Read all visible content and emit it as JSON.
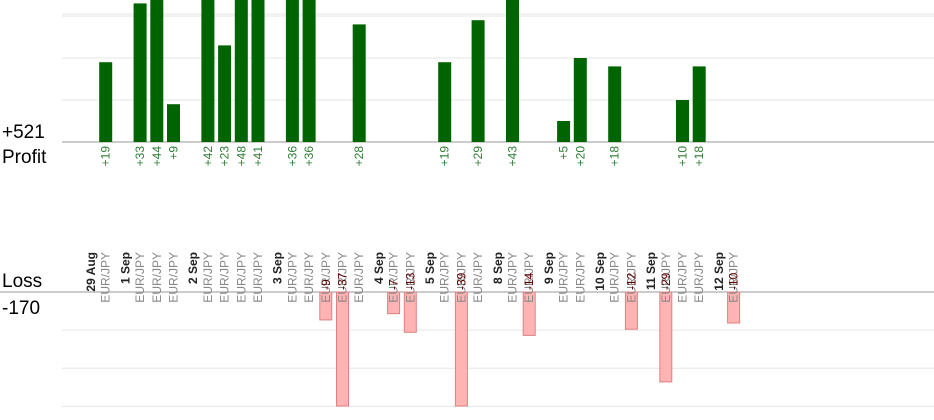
{
  "profit": {
    "total": "+521",
    "label": "Profit"
  },
  "loss": {
    "label": "Loss",
    "total": "-170"
  },
  "colors": {
    "profit_bar": "#006400",
    "profit_text": "#2e7d32",
    "loss_bar": "#ffb3b3",
    "loss_bar_border": "#e08080",
    "loss_text": "#5a0000",
    "pair_text": "#888888",
    "date_text": "#222222",
    "grid": "#e6e6e6",
    "axis": "#999999"
  },
  "chart_data": {
    "type": "bar",
    "pair": "EUR/JPY",
    "profit_axis": {
      "ylim": [
        0,
        34
      ],
      "grid_step": 10
    },
    "loss_axis": {
      "ylim": [
        -37,
        0
      ],
      "grid_step": 10
    },
    "days": [
      {
        "date": "29 Aug",
        "trades": [
          19
        ]
      },
      {
        "date": "1 Sep",
        "trades": [
          33,
          44,
          9
        ]
      },
      {
        "date": "2 Sep",
        "trades": [
          42,
          23,
          48,
          41
        ]
      },
      {
        "date": "3 Sep",
        "trades": [
          36,
          36,
          -9,
          -37,
          28
        ]
      },
      {
        "date": "4 Sep",
        "trades": [
          -7,
          -13
        ]
      },
      {
        "date": "5 Sep",
        "trades": [
          19,
          -39,
          29
        ]
      },
      {
        "date": "8 Sep",
        "trades": [
          43,
          -14
        ]
      },
      {
        "date": "9 Sep",
        "trades": [
          5,
          20
        ]
      },
      {
        "date": "10 Sep",
        "trades": [
          18,
          -12
        ]
      },
      {
        "date": "11 Sep",
        "trades": [
          -29,
          10,
          18
        ]
      },
      {
        "date": "12 Sep",
        "trades": [
          -10
        ]
      }
    ]
  }
}
